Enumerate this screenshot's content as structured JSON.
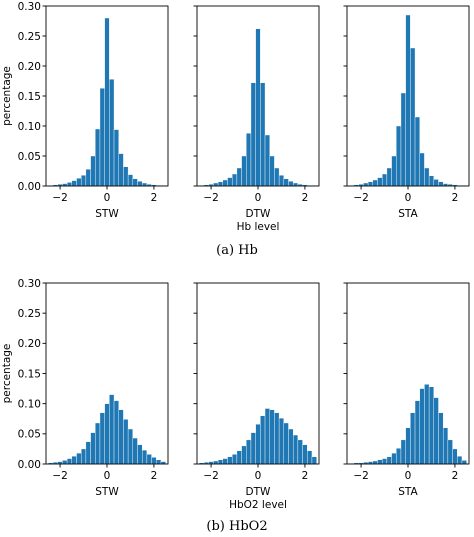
{
  "captions": [
    "(a)  Hb",
    "(b)  HbO2"
  ],
  "chart_data": [
    {
      "type": "bar",
      "group": "Hb",
      "title": "",
      "xlabel": "STW",
      "xlabel2": "",
      "ylabel": "percentage",
      "xlim": [
        -2.6,
        2.6
      ],
      "ylim": [
        0,
        0.3
      ],
      "xticks": [
        -2,
        0,
        2
      ],
      "yticks": [
        0.0,
        0.05,
        0.1,
        0.15,
        0.2,
        0.25,
        0.3
      ],
      "ytick_labels": [
        "0.00",
        "0.05",
        "0.10",
        "0.15",
        "0.20",
        "0.25",
        "0.30"
      ],
      "show_yticklabels": true,
      "color": "#1f77b4",
      "bin_start": -2.5,
      "bin_width": 0.2,
      "values": [
        0.001,
        0.002,
        0.003,
        0.004,
        0.006,
        0.009,
        0.013,
        0.018,
        0.028,
        0.05,
        0.095,
        0.163,
        0.28,
        0.178,
        0.094,
        0.054,
        0.032,
        0.019,
        0.012,
        0.008,
        0.005,
        0.003,
        0.002,
        0.001,
        0.001
      ]
    },
    {
      "type": "bar",
      "group": "Hb",
      "title": "",
      "xlabel": "DTW",
      "xlabel2": "Hb level",
      "ylabel": "",
      "xlim": [
        -2.6,
        2.6
      ],
      "ylim": [
        0,
        0.3
      ],
      "xticks": [
        -2,
        0,
        2
      ],
      "yticks": [
        0.0,
        0.05,
        0.1,
        0.15,
        0.2,
        0.25,
        0.3
      ],
      "ytick_labels": [
        "0.00",
        "0.05",
        "0.10",
        "0.15",
        "0.20",
        "0.25",
        "0.30"
      ],
      "show_yticklabels": false,
      "color": "#1f77b4",
      "bin_start": -2.5,
      "bin_width": 0.2,
      "values": [
        0.001,
        0.002,
        0.003,
        0.005,
        0.007,
        0.01,
        0.014,
        0.02,
        0.03,
        0.05,
        0.088,
        0.172,
        0.262,
        0.172,
        0.085,
        0.05,
        0.03,
        0.018,
        0.012,
        0.008,
        0.005,
        0.003,
        0.002,
        0.001,
        0.001
      ]
    },
    {
      "type": "bar",
      "group": "Hb",
      "title": "",
      "xlabel": "STA",
      "xlabel2": "",
      "ylabel": "",
      "xlim": [
        -2.6,
        2.6
      ],
      "ylim": [
        0,
        0.3
      ],
      "xticks": [
        -2,
        0,
        2
      ],
      "yticks": [
        0.0,
        0.05,
        0.1,
        0.15,
        0.2,
        0.25,
        0.3
      ],
      "ytick_labels": [
        "0.00",
        "0.05",
        "0.10",
        "0.15",
        "0.20",
        "0.25",
        "0.30"
      ],
      "show_yticklabels": false,
      "color": "#1f77b4",
      "bin_start": -2.5,
      "bin_width": 0.2,
      "values": [
        0.001,
        0.002,
        0.003,
        0.005,
        0.007,
        0.01,
        0.014,
        0.02,
        0.03,
        0.05,
        0.1,
        0.155,
        0.285,
        0.23,
        0.115,
        0.055,
        0.03,
        0.017,
        0.011,
        0.007,
        0.004,
        0.003,
        0.002,
        0.001,
        0.001
      ]
    },
    {
      "type": "bar",
      "group": "HbO2",
      "title": "",
      "xlabel": "STW",
      "xlabel2": "",
      "ylabel": "percentage",
      "xlim": [
        -2.6,
        2.6
      ],
      "ylim": [
        0,
        0.3
      ],
      "xticks": [
        -2,
        0,
        2
      ],
      "yticks": [
        0.0,
        0.05,
        0.1,
        0.15,
        0.2,
        0.25,
        0.3
      ],
      "ytick_labels": [
        "0.00",
        "0.05",
        "0.10",
        "0.15",
        "0.20",
        "0.25",
        "0.30"
      ],
      "show_yticklabels": true,
      "color": "#1f77b4",
      "bin_start": -2.5,
      "bin_width": 0.2,
      "values": [
        0.002,
        0.003,
        0.004,
        0.006,
        0.009,
        0.013,
        0.018,
        0.025,
        0.037,
        0.052,
        0.068,
        0.085,
        0.1,
        0.115,
        0.105,
        0.09,
        0.074,
        0.058,
        0.043,
        0.032,
        0.023,
        0.016,
        0.011,
        0.007,
        0.004
      ]
    },
    {
      "type": "bar",
      "group": "HbO2",
      "title": "",
      "xlabel": "DTW",
      "xlabel2": "HbO2 level",
      "ylabel": "",
      "xlim": [
        -2.6,
        2.6
      ],
      "ylim": [
        0,
        0.3
      ],
      "xticks": [
        -2,
        0,
        2
      ],
      "yticks": [
        0.0,
        0.05,
        0.1,
        0.15,
        0.2,
        0.25,
        0.3
      ],
      "ytick_labels": [
        "0.00",
        "0.05",
        "0.10",
        "0.15",
        "0.20",
        "0.25",
        "0.30"
      ],
      "show_yticklabels": false,
      "color": "#1f77b4",
      "bin_start": -2.5,
      "bin_width": 0.2,
      "values": [
        0.002,
        0.003,
        0.004,
        0.005,
        0.007,
        0.009,
        0.012,
        0.016,
        0.022,
        0.03,
        0.04,
        0.052,
        0.066,
        0.08,
        0.092,
        0.09,
        0.085,
        0.076,
        0.068,
        0.058,
        0.048,
        0.04,
        0.032,
        0.022,
        0.012
      ]
    },
    {
      "type": "bar",
      "group": "HbO2",
      "title": "",
      "xlabel": "STA",
      "xlabel2": "",
      "ylabel": "",
      "xlim": [
        -2.6,
        2.6
      ],
      "ylim": [
        0,
        0.3
      ],
      "xticks": [
        -2,
        0,
        2
      ],
      "yticks": [
        0.0,
        0.05,
        0.1,
        0.15,
        0.2,
        0.25,
        0.3
      ],
      "ytick_labels": [
        "0.00",
        "0.05",
        "0.10",
        "0.15",
        "0.20",
        "0.25",
        "0.30"
      ],
      "show_yticklabels": false,
      "color": "#1f77b4",
      "bin_start": -2.5,
      "bin_width": 0.2,
      "values": [
        0.001,
        0.002,
        0.002,
        0.003,
        0.004,
        0.005,
        0.007,
        0.009,
        0.012,
        0.018,
        0.026,
        0.04,
        0.06,
        0.085,
        0.105,
        0.125,
        0.132,
        0.128,
        0.11,
        0.085,
        0.06,
        0.04,
        0.025,
        0.013,
        0.006
      ]
    }
  ]
}
